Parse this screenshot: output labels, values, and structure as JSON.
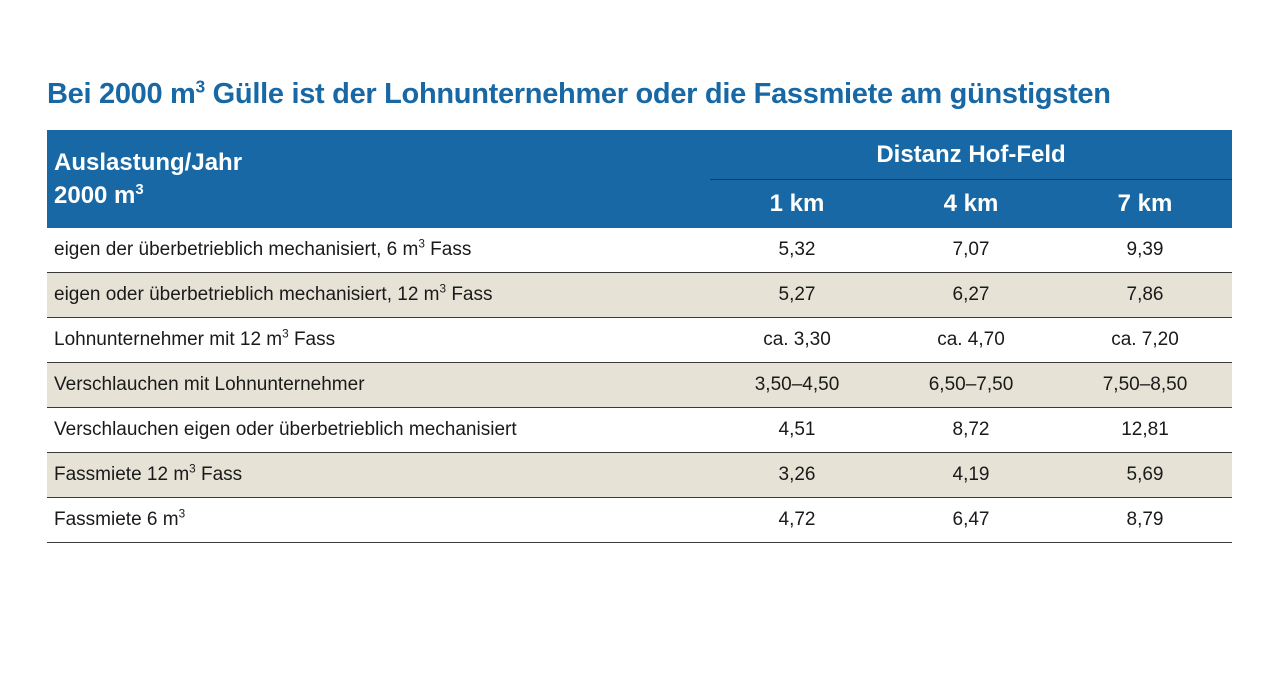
{
  "title": {
    "before": "Bei 2000 m",
    "sup": "3",
    "after": " Gülle ist der Lohnunternehmer oder die Fassmiete am günstigsten"
  },
  "header": {
    "corner_line1": "Auslastung/Jahr",
    "corner_line2": "2000 m",
    "corner_sup": "3",
    "group": "Distanz Hof-Feld",
    "columns": [
      "1 km",
      "4 km",
      "7 km"
    ]
  },
  "chart_data": {
    "type": "table",
    "title": "Bei 2000 m³ Gülle ist der Lohnunternehmer oder die Fassmiete am günstigsten",
    "row_header": "Auslastung/Jahr 2000 m³",
    "column_group": "Distanz Hof-Feld",
    "columns": [
      "1 km",
      "4 km",
      "7 km"
    ],
    "rows": [
      {
        "pre": "eigen der überbetrieblich mechanisiert, 6 m",
        "sup": "3",
        "post": " Fass",
        "values": [
          "5,32",
          "7,07",
          "9,39"
        ]
      },
      {
        "pre": "eigen oder überbetrieblich mechanisiert, 12 m",
        "sup": "3",
        "post": " Fass",
        "values": [
          "5,27",
          "6,27",
          "7,86"
        ]
      },
      {
        "pre": "Lohnunternehmer mit 12 m",
        "sup": "3",
        "post": " Fass",
        "values": [
          "ca. 3,30",
          "ca. 4,70",
          "ca. 7,20"
        ]
      },
      {
        "pre": "Verschlauchen mit Lohnunternehmer",
        "sup": "",
        "post": "",
        "values": [
          "3,50–4,50",
          "6,50–7,50",
          "7,50–8,50"
        ]
      },
      {
        "pre": "Verschlauchen eigen oder überbetrieblich mechanisiert",
        "sup": "",
        "post": "",
        "values": [
          "4,51",
          "8,72",
          "12,81"
        ]
      },
      {
        "pre": "Fassmiete 12 m",
        "sup": "3",
        "post": " Fass",
        "values": [
          "3,26",
          "4,19",
          "5,69"
        ]
      },
      {
        "pre": "Fassmiete 6 m",
        "sup": "3",
        "post": "",
        "values": [
          "4,72",
          "6,47",
          "8,79"
        ]
      }
    ]
  },
  "colors": {
    "accent": "#1768a4",
    "alt_row": "#e6e3d6"
  }
}
